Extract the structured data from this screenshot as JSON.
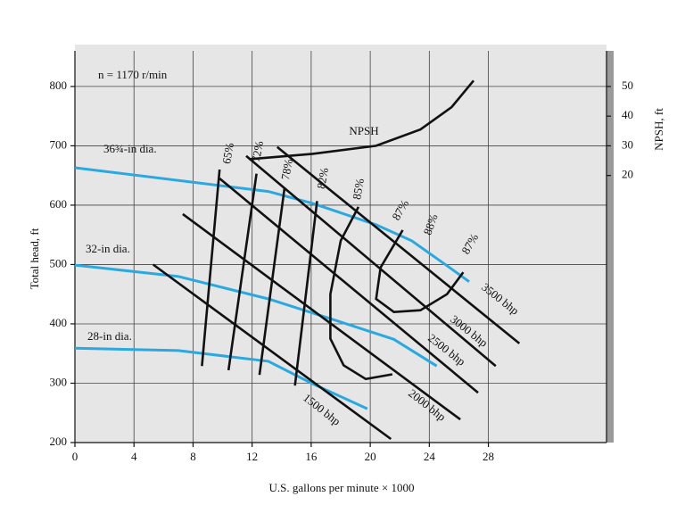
{
  "chart_data": {
    "type": "line",
    "x_label": "U.S. gallons per minute × 1000",
    "y_label": "Total head, ft",
    "y2_label": "NPSH, ft",
    "xlim": [
      0,
      36
    ],
    "ylim": [
      200,
      860
    ],
    "y2lim": [
      -70,
      62
    ],
    "xticks": [
      0,
      4,
      8,
      12,
      16,
      20,
      24,
      28
    ],
    "yticks": [
      200,
      300,
      400,
      500,
      600,
      700,
      800
    ],
    "y2ticks": [
      20,
      30,
      40,
      50
    ],
    "grid": true,
    "annotations": [
      "n = 1170 r/min",
      "88%",
      "87%"
    ],
    "series": [
      {
        "name": "36¾-in dia.",
        "color": "#29a9e0",
        "x": [
          0,
          13.1,
          16.1,
          20.4,
          22.8,
          25.2,
          26.7
        ],
        "values": [
          663,
          623,
          603,
          567,
          540,
          498,
          471
        ]
      },
      {
        "name": "32-in dia.",
        "color": "#29a9e0",
        "x": [
          0,
          7.0,
          13.1,
          17.9,
          21.6,
          24.5
        ],
        "values": [
          499,
          480,
          442,
          404,
          374,
          329
        ]
      },
      {
        "name": "28-in dia.",
        "color": "#29a9e0",
        "x": [
          0,
          7.0,
          13.1,
          16.1,
          19.8
        ],
        "values": [
          359,
          355,
          337,
          299,
          257
        ]
      },
      {
        "name": "65%",
        "color": "#111111",
        "x": [
          9.8,
          8.6
        ],
        "values": [
          660,
          329
        ]
      },
      {
        "name": "72%",
        "color": "#111111",
        "x": [
          12.3,
          10.4
        ],
        "values": [
          653,
          322
        ]
      },
      {
        "name": "78%",
        "color": "#111111",
        "x": [
          14.2,
          12.5
        ],
        "values": [
          630,
          314
        ]
      },
      {
        "name": "82%",
        "color": "#111111",
        "x": [
          16.4,
          14.9
        ],
        "values": [
          607,
          296
        ]
      },
      {
        "name": "85%",
        "color": "#111111",
        "x": [
          19.2,
          18.0,
          17.3,
          17.3,
          18.2,
          19.7,
          21.5
        ],
        "values": [
          597,
          540,
          450,
          375,
          330,
          307,
          315
        ]
      },
      {
        "name": "87%",
        "color": "#111111",
        "x": [
          22.2,
          20.7,
          20.4,
          21.6,
          23.4,
          25.2,
          26.3
        ],
        "values": [
          558,
          495,
          442,
          420,
          423,
          450,
          487
        ]
      },
      {
        "name": "1500 bhp",
        "color": "#111111",
        "x": [
          5.3,
          21.4
        ],
        "values": [
          500,
          206
        ]
      },
      {
        "name": "2000 bhp",
        "color": "#111111",
        "x": [
          7.3,
          26.1
        ],
        "values": [
          585,
          239
        ]
      },
      {
        "name": "2500 bhp",
        "color": "#111111",
        "x": [
          9.8,
          27.3
        ],
        "values": [
          645,
          284
        ]
      },
      {
        "name": "3000 bhp",
        "color": "#111111",
        "x": [
          11.6,
          28.5
        ],
        "values": [
          683,
          329
        ]
      },
      {
        "name": "3500 bhp",
        "color": "#111111",
        "x": [
          13.7,
          30.1
        ],
        "values": [
          698,
          367
        ]
      },
      {
        "name": "NPSH",
        "color": "#111111",
        "axis": "y2",
        "x": [
          11.8,
          16.1,
          20.4,
          23.4,
          25.5,
          27.0
        ],
        "values": [
          25.5,
          27.3,
          30,
          35.5,
          43,
          52
        ]
      }
    ]
  }
}
